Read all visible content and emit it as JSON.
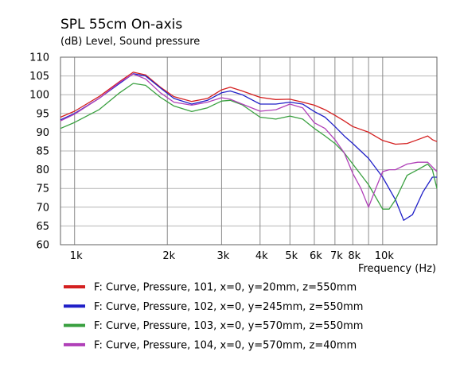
{
  "chart_data": {
    "type": "line",
    "title": "SPL 55cm On-axis",
    "ylabel": "(dB)  Level, Sound pressure",
    "xlabel": "Frequency  (Hz)",
    "x_scale": "log",
    "xlim": [
      900,
      15000
    ],
    "ylim": [
      60,
      110
    ],
    "grid": true,
    "legend_position": "bottom",
    "y_ticks": [
      60,
      65,
      70,
      75,
      80,
      85,
      90,
      95,
      100,
      105,
      110
    ],
    "x_ticks": [
      {
        "value": 1000,
        "label": "1k"
      },
      {
        "value": 2000,
        "label": "2k"
      },
      {
        "value": 3000,
        "label": "3k"
      },
      {
        "value": 4000,
        "label": "4k"
      },
      {
        "value": 5000,
        "label": "5k"
      },
      {
        "value": 6000,
        "label": "6k"
      },
      {
        "value": 7000,
        "label": "7k"
      },
      {
        "value": 8000,
        "label": "8k"
      },
      {
        "value": 10000,
        "label": "10k"
      }
    ],
    "x_grid": [
      1000,
      2000,
      3000,
      4000,
      5000,
      6000,
      7000,
      8000,
      9000,
      10000
    ],
    "series": [
      {
        "name": "F: Curve, Pressure, 101, x=0, y=20mm, z=550mm",
        "color": "#d42020",
        "points": [
          [
            900,
            94
          ],
          [
            1000,
            95.6
          ],
          [
            1200,
            99.5
          ],
          [
            1400,
            103.5
          ],
          [
            1550,
            106
          ],
          [
            1700,
            105.3
          ],
          [
            1900,
            102
          ],
          [
            2100,
            99.5
          ],
          [
            2400,
            98.2
          ],
          [
            2700,
            99
          ],
          [
            3000,
            101.3
          ],
          [
            3200,
            102
          ],
          [
            3500,
            101
          ],
          [
            4000,
            99.3
          ],
          [
            4500,
            98.7
          ],
          [
            5000,
            98.8
          ],
          [
            5500,
            98
          ],
          [
            6000,
            97.2
          ],
          [
            6500,
            96
          ],
          [
            7000,
            94.5
          ],
          [
            7500,
            93
          ],
          [
            8000,
            91.5
          ],
          [
            9000,
            90
          ],
          [
            10000,
            87.8
          ],
          [
            11000,
            86.8
          ],
          [
            12000,
            87
          ],
          [
            13000,
            88
          ],
          [
            14000,
            89
          ],
          [
            14500,
            88
          ],
          [
            15000,
            87.5
          ]
        ]
      },
      {
        "name": "F: Curve, Pressure, 102, x=0, y=245mm, z=550mm",
        "color": "#2020c8",
        "points": [
          [
            900,
            93.3
          ],
          [
            1000,
            95
          ],
          [
            1200,
            99
          ],
          [
            1400,
            103
          ],
          [
            1550,
            105.6
          ],
          [
            1700,
            105
          ],
          [
            1900,
            101.8
          ],
          [
            2100,
            99
          ],
          [
            2400,
            97.5
          ],
          [
            2700,
            98.5
          ],
          [
            3000,
            100.5
          ],
          [
            3200,
            101
          ],
          [
            3500,
            100
          ],
          [
            4000,
            97.5
          ],
          [
            4500,
            97.5
          ],
          [
            5000,
            98
          ],
          [
            5500,
            97.5
          ],
          [
            6000,
            95.5
          ],
          [
            6500,
            94
          ],
          [
            7000,
            91.5
          ],
          [
            7500,
            89
          ],
          [
            8000,
            87
          ],
          [
            9000,
            83
          ],
          [
            10000,
            78
          ],
          [
            11000,
            72
          ],
          [
            11700,
            66.5
          ],
          [
            12500,
            68
          ],
          [
            13500,
            74
          ],
          [
            14500,
            78
          ],
          [
            15000,
            78
          ]
        ]
      },
      {
        "name": "F: Curve, Pressure, 103, x=0, y=570mm, z=550mm",
        "color": "#3aa040",
        "points": [
          [
            900,
            91
          ],
          [
            1000,
            92.6
          ],
          [
            1200,
            96
          ],
          [
            1400,
            100.5
          ],
          [
            1550,
            103
          ],
          [
            1700,
            102.5
          ],
          [
            1900,
            99.3
          ],
          [
            2100,
            97
          ],
          [
            2400,
            95.5
          ],
          [
            2700,
            96.5
          ],
          [
            3000,
            98.3
          ],
          [
            3200,
            98.5
          ],
          [
            3500,
            97.3
          ],
          [
            4000,
            94
          ],
          [
            4500,
            93.5
          ],
          [
            5000,
            94.3
          ],
          [
            5500,
            93.5
          ],
          [
            6000,
            91
          ],
          [
            6500,
            89
          ],
          [
            7000,
            87
          ],
          [
            7500,
            84.5
          ],
          [
            8000,
            81.5
          ],
          [
            9000,
            76
          ],
          [
            10000,
            69.5
          ],
          [
            10500,
            69.5
          ],
          [
            11000,
            72
          ],
          [
            12000,
            78.5
          ],
          [
            13000,
            80
          ],
          [
            14000,
            81.5
          ],
          [
            14500,
            80
          ],
          [
            15000,
            75
          ]
        ]
      },
      {
        "name": "F: Curve, Pressure, 104, x=0, y=570mm, z=40mm",
        "color": "#b040b8",
        "points": [
          [
            900,
            93
          ],
          [
            1000,
            94.8
          ],
          [
            1200,
            99
          ],
          [
            1400,
            103.3
          ],
          [
            1550,
            105.5
          ],
          [
            1700,
            104.2
          ],
          [
            1900,
            100.5
          ],
          [
            2100,
            98
          ],
          [
            2400,
            97.2
          ],
          [
            2700,
            98
          ],
          [
            3000,
            99.2
          ],
          [
            3200,
            98.8
          ],
          [
            3500,
            97.5
          ],
          [
            4000,
            95.6
          ],
          [
            4500,
            96
          ],
          [
            5000,
            97.5
          ],
          [
            5500,
            96.5
          ],
          [
            6000,
            92.5
          ],
          [
            6500,
            91
          ],
          [
            7000,
            88
          ],
          [
            7500,
            84.5
          ],
          [
            8000,
            79
          ],
          [
            8500,
            75
          ],
          [
            9000,
            70
          ],
          [
            9500,
            75
          ],
          [
            10000,
            79.5
          ],
          [
            10500,
            80
          ],
          [
            11000,
            80
          ],
          [
            12000,
            81.5
          ],
          [
            13000,
            82
          ],
          [
            14000,
            82
          ],
          [
            15000,
            79.5
          ]
        ]
      }
    ]
  }
}
